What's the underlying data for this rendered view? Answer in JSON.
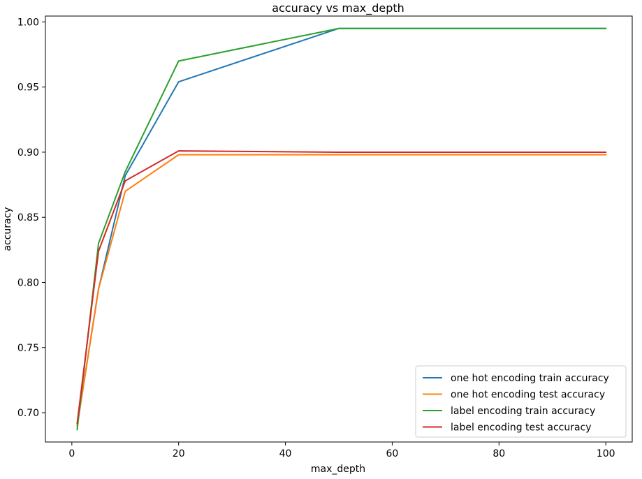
{
  "chart_data": {
    "type": "line",
    "title": "accuracy vs max_depth",
    "xlabel": "max_depth",
    "ylabel": "accuracy",
    "xlim": [
      -4.95,
      104.95
    ],
    "ylim": [
      0.6775,
      1.0045
    ],
    "xticks": [
      0,
      20,
      40,
      60,
      80,
      100
    ],
    "xtick_labels": [
      "0",
      "20",
      "40",
      "60",
      "80",
      "100"
    ],
    "yticks": [
      0.7,
      0.75,
      0.8,
      0.85,
      0.9,
      0.95,
      1.0
    ],
    "ytick_labels": [
      "0.70",
      "0.75",
      "0.80",
      "0.85",
      "0.90",
      "0.95",
      "1.00"
    ],
    "grid": false,
    "legend_position": "lower-right",
    "x": [
      1,
      5,
      10,
      20,
      50,
      100
    ],
    "series": [
      {
        "name": "one hot encoding train accuracy",
        "color": "#1f77b4",
        "values": [
          0.69,
          0.795,
          0.882,
          0.954,
          0.995,
          0.995
        ]
      },
      {
        "name": "one hot encoding test accuracy",
        "color": "#ff7f0e",
        "values": [
          0.69,
          0.795,
          0.87,
          0.898,
          0.898,
          0.898
        ]
      },
      {
        "name": "label encoding train accuracy",
        "color": "#2ca02c",
        "values": [
          0.687,
          0.83,
          0.885,
          0.97,
          0.995,
          0.995
        ]
      },
      {
        "name": "label encoding test accuracy",
        "color": "#d62728",
        "values": [
          0.692,
          0.824,
          0.878,
          0.901,
          0.9,
          0.9
        ]
      }
    ]
  }
}
